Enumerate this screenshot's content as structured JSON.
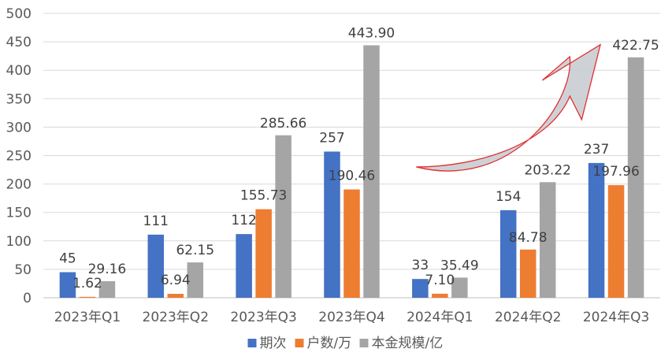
{
  "chart_data": {
    "type": "bar",
    "title": "",
    "xlabel": "",
    "ylabel": "",
    "categories": [
      "2023年Q1",
      "2023年Q2",
      "2023年Q3",
      "2023年Q4",
      "2024年Q1",
      "2024年Q2",
      "2024年Q3"
    ],
    "ylim": [
      0,
      500
    ],
    "yticks": [
      0,
      50,
      100,
      150,
      200,
      250,
      300,
      350,
      400,
      450,
      500
    ],
    "grid": true,
    "legend_position": "bottom",
    "series": [
      {
        "name": "期次",
        "color": "#4472C4",
        "values": [
          45,
          111,
          112,
          257,
          33,
          154,
          237
        ],
        "labels": [
          "45",
          "111",
          "112",
          "257",
          "33",
          "154",
          "237"
        ]
      },
      {
        "name": "户数/万",
        "color": "#ED7D31",
        "values": [
          1.62,
          6.94,
          155.73,
          190.46,
          7.1,
          84.78,
          197.96
        ],
        "labels": [
          "1.62",
          "6.94",
          "155.73",
          "190.46",
          "7.10",
          "84.78",
          "197.96"
        ]
      },
      {
        "name": "本金规模/亿",
        "color": "#A5A5A5",
        "values": [
          29.16,
          62.15,
          285.66,
          443.9,
          35.49,
          203.22,
          422.75
        ],
        "labels": [
          "29.16",
          "62.15",
          "285.66",
          "443.90",
          "35.49",
          "203.22",
          "422.75"
        ]
      }
    ],
    "annotation": {
      "shape": "curved-arrow",
      "from_category": "2024年Q1",
      "to_category": "2024年Q3",
      "fill": "#C9CDD3",
      "stroke": "#E03030"
    }
  }
}
